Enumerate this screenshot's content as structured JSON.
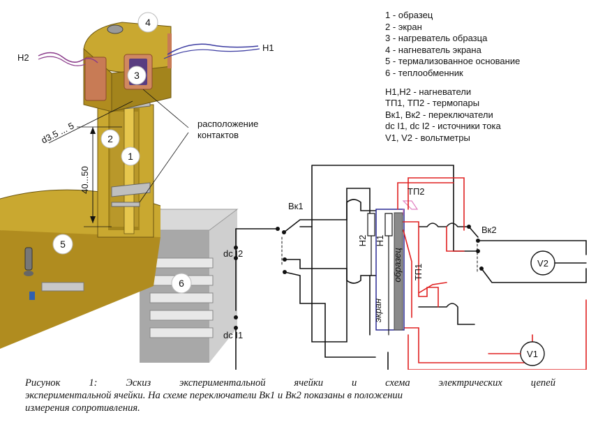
{
  "legend": {
    "items": [
      "1 - образец",
      "2 - экран",
      "3 - нагреватель образца",
      "4 - нагневатель экрана",
      "5 - термализованное основание",
      "6 - теплообменник"
    ],
    "items2": [
      "H1,H2 - нагневатели",
      "ТП1, ТП2 - термопары",
      "Вк1, Вк2 - переключатели",
      "dc I1, dc I2 - источники тока",
      "V1, V2 - вольтметры"
    ]
  },
  "drawing": {
    "num1": "1",
    "num2": "2",
    "num3": "3",
    "num4": "4",
    "num5": "5",
    "num6": "6",
    "h1": "H1",
    "h2": "H2",
    "contacts_line1": "расположение",
    "contacts_line2": "контактов",
    "dim_diameter": "d3.5 ... 5",
    "dim_length": "40...50"
  },
  "circuit": {
    "vk1": "Вк1",
    "vk2": "Вк2",
    "dc_i2": "dc I2",
    "dc_i1": "dc I1",
    "tp2": "ТП2",
    "tp1": "ТП1",
    "h2": "H2",
    "h1": "H1",
    "sample": "образец",
    "screen": "экран",
    "v1": "V1",
    "v2": "V2",
    "colors": {
      "black_wire": "#111111",
      "red_wire": "#e02020",
      "screen_wire": "#1a1a8c",
      "sample_bar": "#8a8a8a",
      "pink": "#e080c0"
    }
  },
  "caption": {
    "line1": "Рисунок   1:   Эскиз   экспериментальной   ячейки   и   схема   электрических   цепей",
    "line2": "экспериментальной ячейки. На схеме переключатели Вк1 и Вк2 показаны в положении",
    "line3": "измерения сопротивления."
  }
}
